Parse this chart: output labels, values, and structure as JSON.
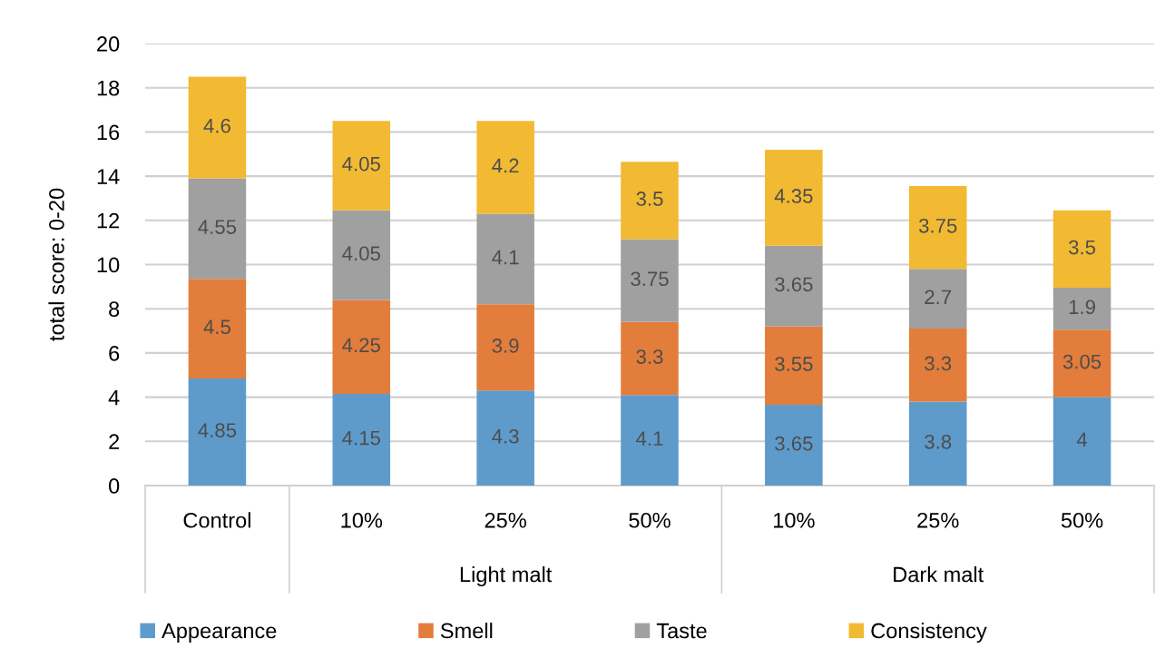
{
  "chart_data": {
    "type": "bar",
    "stacked": true,
    "categories": [
      "Control",
      "10%",
      "25%",
      "50%",
      "10%",
      "25%",
      "50%"
    ],
    "ylabel": "total score: 0-20",
    "ylim": [
      0,
      20
    ],
    "yticks": [
      0,
      2,
      4,
      6,
      8,
      10,
      12,
      14,
      16,
      18,
      20
    ],
    "grid": "y",
    "legend": "bottom",
    "data_labels": true,
    "annotations": [
      "Light malt",
      "Dark malt"
    ],
    "series": [
      {
        "name": "Appearance",
        "color": "#5e9bcb",
        "values": [
          4.85,
          4.15,
          4.3,
          4.1,
          3.65,
          3.8,
          4
        ]
      },
      {
        "name": "Smell",
        "color": "#e37d3b",
        "values": [
          4.5,
          4.25,
          3.9,
          3.3,
          3.55,
          3.3,
          3.05
        ]
      },
      {
        "name": "Taste",
        "color": "#a0a0a0",
        "values": [
          4.55,
          4.05,
          4.1,
          3.75,
          3.65,
          2.7,
          1.9
        ]
      },
      {
        "name": "Consistency",
        "color": "#f2ba32",
        "values": [
          4.6,
          4.05,
          4.2,
          3.5,
          4.35,
          3.75,
          3.5
        ]
      }
    ]
  }
}
